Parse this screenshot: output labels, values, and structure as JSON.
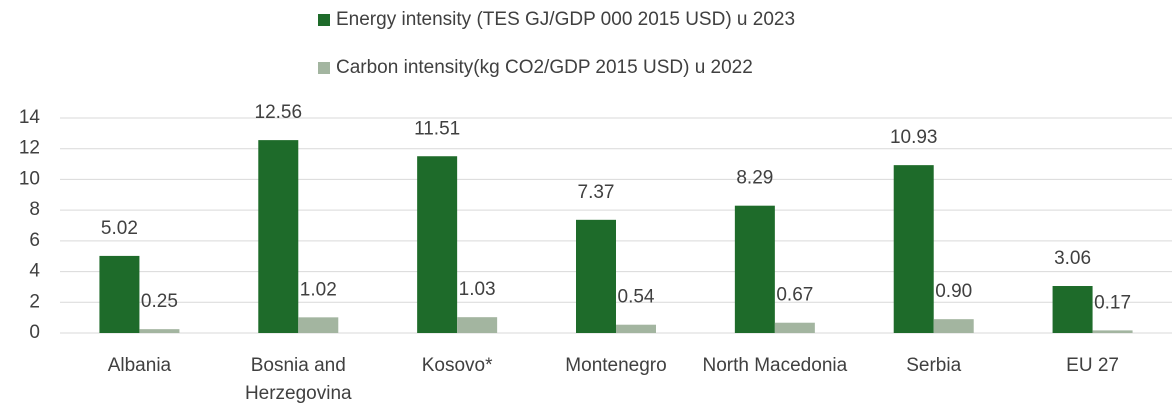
{
  "chart_data": {
    "type": "bar",
    "categories": [
      "Albania",
      "Bosnia and Herzegovina",
      "Kosovo*",
      "Montenegro",
      "North Macedonia",
      "Serbia",
      "EU 27"
    ],
    "series": [
      {
        "name": "Energy intensity (TES GJ/GDP 000 2015 USD) u 2023",
        "color": "#1e6b2a",
        "values": [
          5.02,
          12.56,
          11.51,
          7.37,
          8.29,
          10.93,
          3.06
        ],
        "value_labels": [
          "5.02",
          "12.56",
          "11.51",
          "7.37",
          "8.29",
          "10.93",
          "3.06"
        ]
      },
      {
        "name": "Carbon intensity(kg CO2/GDP 2015 USD) u 2022",
        "color": "#a3b5a0",
        "values": [
          0.25,
          1.02,
          1.03,
          0.54,
          0.67,
          0.9,
          0.17
        ],
        "value_labels": [
          "0.25",
          "1.02",
          "1.03",
          "0.54",
          "0.67",
          "0.90",
          "0.17"
        ]
      }
    ],
    "ylim": [
      0,
      14
    ],
    "yticks": [
      0,
      2,
      4,
      6,
      8,
      10,
      12,
      14
    ],
    "grid": true,
    "legend": "top"
  }
}
